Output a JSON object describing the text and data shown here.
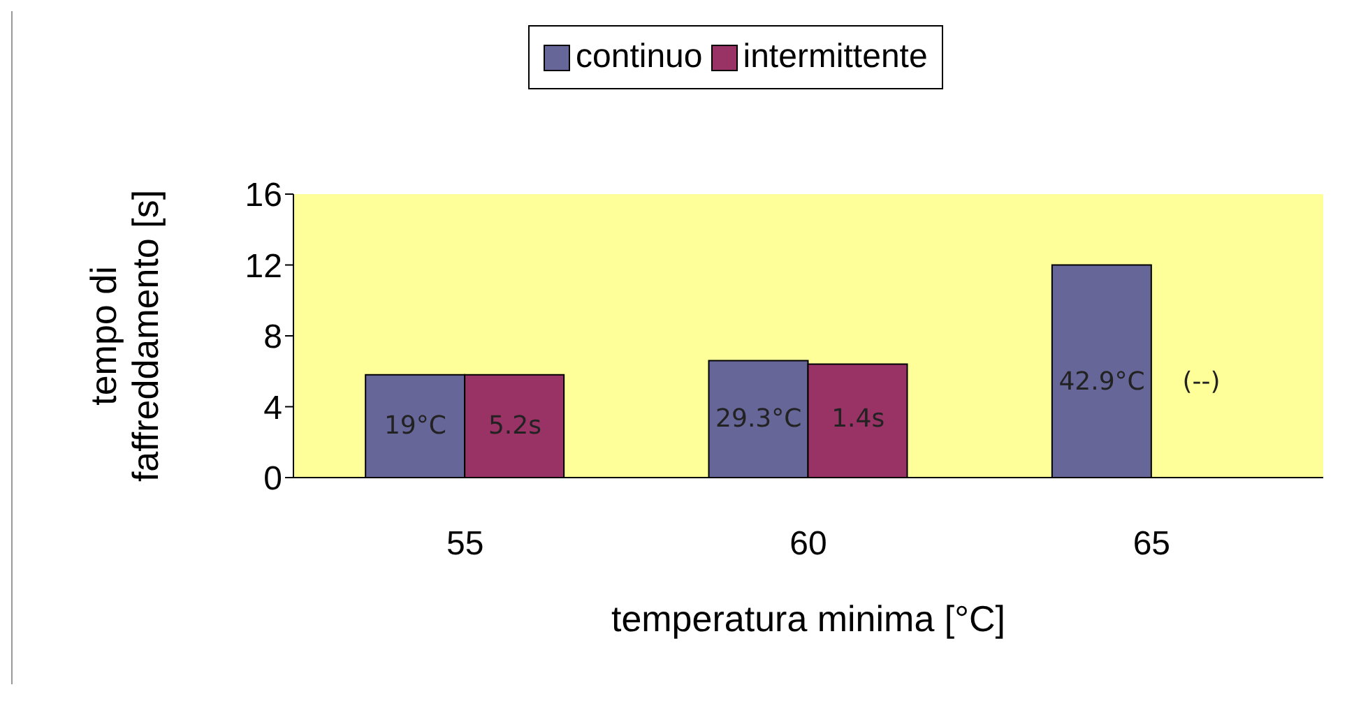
{
  "chart_data": {
    "type": "bar",
    "xlabel": "temperatura minima [°C]",
    "ylabel": "tempo di faffreddamento [s]",
    "categories": [
      "55",
      "60",
      "65"
    ],
    "series": [
      {
        "name": "continuo",
        "color": "#666699",
        "values": [
          5.8,
          6.6,
          12.0
        ]
      },
      {
        "name": "intermittente",
        "color": "#993366",
        "values": [
          5.8,
          6.4,
          null
        ]
      }
    ],
    "annotations": [
      {
        "text": "19°C",
        "x": "55",
        "y": 2.9
      },
      {
        "text": "5.2s",
        "x": "55",
        "y": 2.9
      },
      {
        "text": "29.3°C",
        "x": "60",
        "y": 3.3
      },
      {
        "text": "1.4s",
        "x": "60",
        "y": 3.3
      },
      {
        "text": "42.9°C",
        "x": "65",
        "y": 5.4
      },
      {
        "text": "(--)",
        "x": "65",
        "y": 5.4
      }
    ],
    "ylim": [
      0,
      16
    ],
    "yticks": [
      0,
      4,
      8,
      12,
      16
    ],
    "grid": false,
    "legend": "top"
  }
}
